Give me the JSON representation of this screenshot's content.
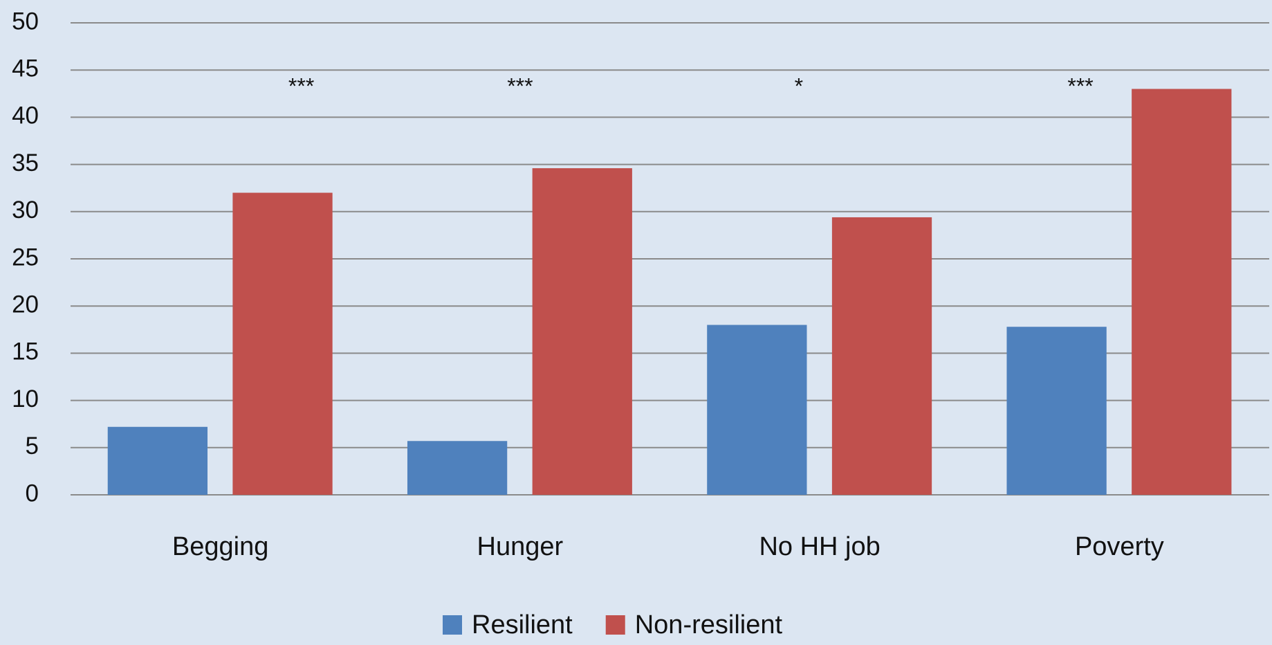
{
  "chart_data": {
    "type": "bar",
    "categories": [
      "Begging",
      "Hunger",
      "No HH job",
      "Poverty"
    ],
    "series": [
      {
        "name": "Resilient",
        "color": "#4f81bd",
        "values": [
          7.2,
          5.7,
          18.0,
          17.8
        ]
      },
      {
        "name": "Non-resilient",
        "color": "#c0504d",
        "values": [
          32.0,
          34.6,
          29.4,
          43.0
        ]
      }
    ],
    "annotations": [
      "***",
      "***",
      "*",
      "***"
    ],
    "ylim": [
      0,
      50
    ],
    "yticks": [
      0,
      5,
      10,
      15,
      20,
      25,
      30,
      35,
      40,
      45,
      50
    ],
    "grid": true,
    "legend": "bottom"
  }
}
